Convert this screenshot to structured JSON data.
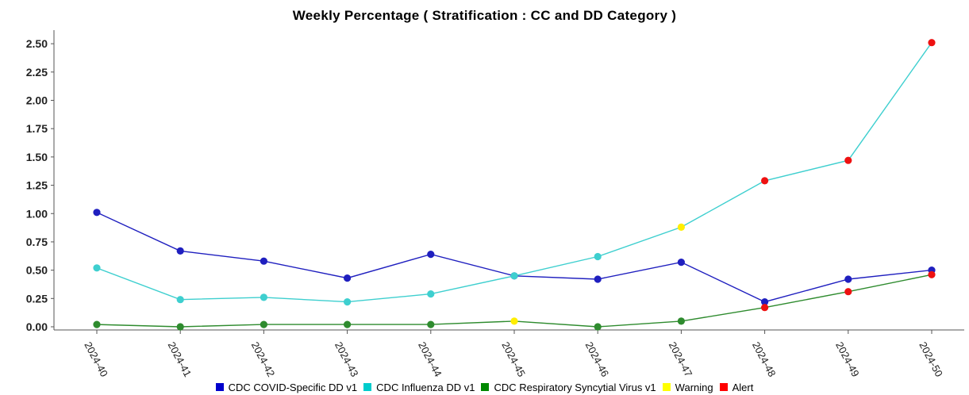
{
  "chart_data": {
    "type": "line",
    "title": "Weekly Percentage ( Stratification : CC and DD Category )",
    "categories": [
      "2024-40",
      "2024-41",
      "2024-42",
      "2024-43",
      "2024-44",
      "2024-45",
      "2024-46",
      "2024-47",
      "2024-48",
      "2024-49",
      "2024-50"
    ],
    "ylim": [
      0,
      2.62
    ],
    "yticks": [
      "0.00",
      "0.25",
      "0.50",
      "0.75",
      "1.00",
      "1.25",
      "1.50",
      "1.75",
      "2.00",
      "2.25",
      "2.50"
    ],
    "grid": false,
    "legend_position": "bottom",
    "series": [
      {
        "name": "CDC COVID-Specific DD v1",
        "color": "#1f1fbf",
        "values": [
          1.01,
          0.67,
          0.58,
          0.43,
          0.64,
          0.45,
          0.42,
          0.57,
          0.22,
          0.42,
          0.5
        ],
        "flags": [
          "normal",
          "normal",
          "normal",
          "normal",
          "normal",
          "normal",
          "normal",
          "normal",
          "normal",
          "normal",
          "normal"
        ]
      },
      {
        "name": "CDC Influenza DD v1",
        "color": "#3ecfcf",
        "values": [
          0.52,
          0.24,
          0.26,
          0.22,
          0.29,
          0.45,
          0.62,
          0.88,
          1.29,
          1.47,
          2.51
        ],
        "flags": [
          "normal",
          "normal",
          "normal",
          "normal",
          "normal",
          "normal",
          "normal",
          "warning",
          "alert",
          "alert",
          "alert"
        ]
      },
      {
        "name": "CDC Respiratory Syncytial Virus v1",
        "color": "#2e8b2e",
        "values": [
          0.02,
          0.0,
          0.02,
          0.02,
          0.02,
          0.05,
          0.0,
          0.05,
          0.17,
          0.31,
          0.46
        ],
        "flags": [
          "normal",
          "normal",
          "normal",
          "normal",
          "normal",
          "warning",
          "normal",
          "normal",
          "alert",
          "alert",
          "alert"
        ]
      }
    ],
    "legend": [
      {
        "label": "CDC COVID-Specific DD v1",
        "color": "#0000cc"
      },
      {
        "label": "CDC Influenza DD v1",
        "color": "#00cccc"
      },
      {
        "label": "CDC Respiratory Syncytial Virus v1",
        "color": "#008800"
      },
      {
        "label": "Warning",
        "color": "#ffff00"
      },
      {
        "label": "Alert",
        "color": "#ff0000"
      }
    ],
    "flag_colors": {
      "warning": "#ffee00",
      "alert": "#ee1111"
    }
  }
}
